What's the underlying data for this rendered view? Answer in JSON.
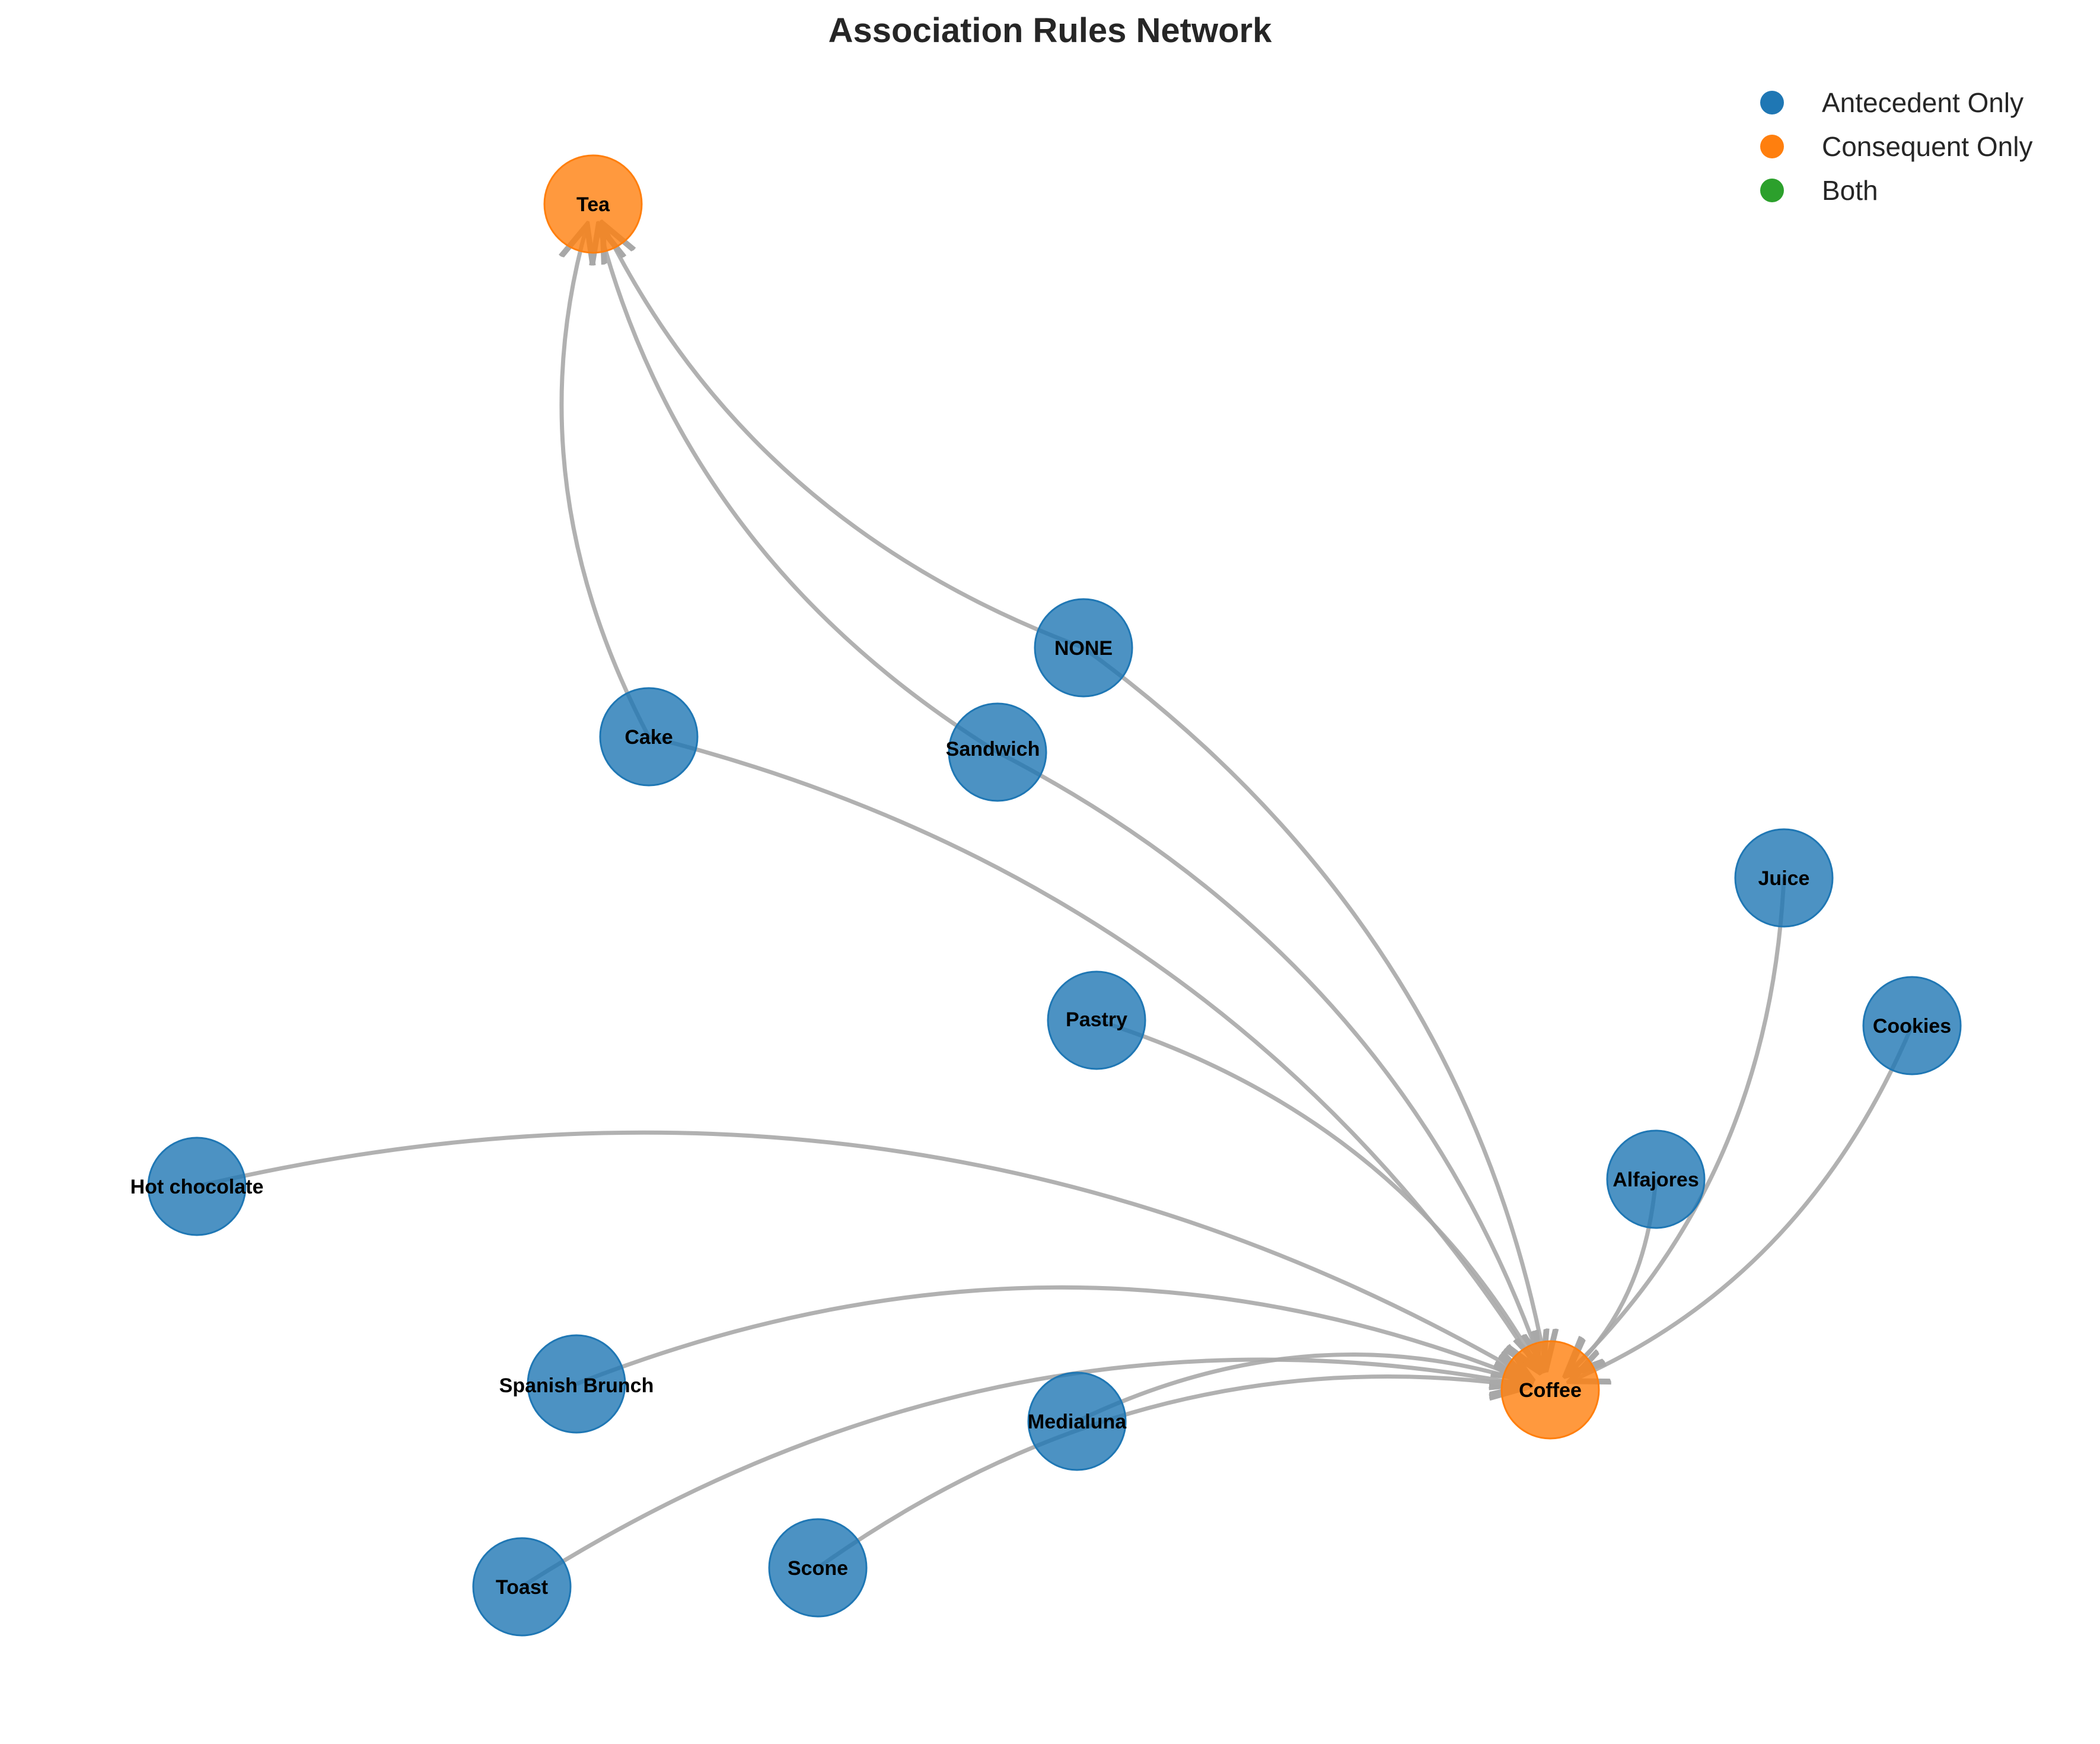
{
  "title": "Association Rules Network",
  "legend": [
    {
      "label": "Antecedent Only",
      "color": "#1f77b4"
    },
    {
      "label": "Consequent Only",
      "color": "#ff7f0e"
    },
    {
      "label": "Both",
      "color": "#2ca02c"
    }
  ],
  "nodes": [
    {
      "id": "tea",
      "label": "Tea",
      "role": "Consequent Only"
    },
    {
      "id": "none",
      "label": "NONE",
      "role": "Antecedent Only"
    },
    {
      "id": "cake",
      "label": "Cake",
      "role": "Antecedent Only"
    },
    {
      "id": "sandwich",
      "label": "Sandwich",
      "role": "Antecedent Only"
    },
    {
      "id": "juice",
      "label": "Juice",
      "role": "Antecedent Only"
    },
    {
      "id": "pastry",
      "label": "Pastry",
      "role": "Antecedent Only"
    },
    {
      "id": "cookies",
      "label": "Cookies",
      "role": "Antecedent Only"
    },
    {
      "id": "hotchoc",
      "label": "Hot chocolate",
      "role": "Antecedent Only"
    },
    {
      "id": "alfajores",
      "label": "Alfajores",
      "role": "Antecedent Only"
    },
    {
      "id": "spanish",
      "label": "Spanish Brunch",
      "role": "Antecedent Only"
    },
    {
      "id": "coffee",
      "label": "Coffee",
      "role": "Consequent Only"
    },
    {
      "id": "medialuna",
      "label": "Medialuna",
      "role": "Antecedent Only"
    },
    {
      "id": "toast",
      "label": "Toast",
      "role": "Antecedent Only"
    },
    {
      "id": "scone",
      "label": "Scone",
      "role": "Antecedent Only"
    }
  ],
  "edges": [
    {
      "from": "cake",
      "to": "tea"
    },
    {
      "from": "sandwich",
      "to": "tea"
    },
    {
      "from": "none",
      "to": "tea"
    },
    {
      "from": "cake",
      "to": "coffee"
    },
    {
      "from": "sandwich",
      "to": "coffee"
    },
    {
      "from": "none",
      "to": "coffee"
    },
    {
      "from": "pastry",
      "to": "coffee"
    },
    {
      "from": "juice",
      "to": "coffee"
    },
    {
      "from": "cookies",
      "to": "coffee"
    },
    {
      "from": "alfajores",
      "to": "coffee"
    },
    {
      "from": "hotchoc",
      "to": "coffee"
    },
    {
      "from": "spanish",
      "to": "coffee"
    },
    {
      "from": "medialuna",
      "to": "coffee"
    },
    {
      "from": "toast",
      "to": "coffee"
    },
    {
      "from": "scone",
      "to": "coffee"
    }
  ]
}
